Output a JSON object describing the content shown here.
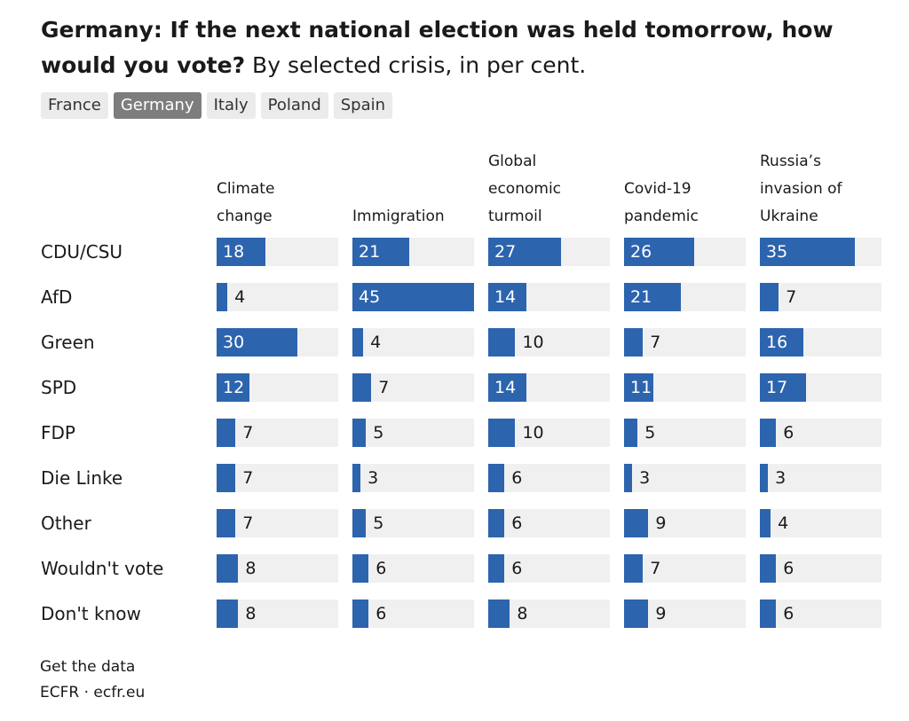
{
  "title": "Germany: If the next national election was held tomorrow, how would you vote?",
  "subtitle": "By selected crisis, in per cent.",
  "tabs": [
    "France",
    "Germany",
    "Italy",
    "Poland",
    "Spain"
  ],
  "active_tab": "Germany",
  "chart_data": {
    "type": "bar",
    "categories": [
      "CDU/CSU",
      "AfD",
      "Green",
      "SPD",
      "FDP",
      "Die Linke",
      "Other",
      "Wouldn't vote",
      "Don't know"
    ],
    "series": [
      {
        "name": "Climate change",
        "color": "#2c64ae",
        "values": [
          18,
          4,
          30,
          12,
          7,
          7,
          7,
          8,
          8
        ]
      },
      {
        "name": "Immigration",
        "color": "#2c64ae",
        "values": [
          21,
          45,
          4,
          7,
          5,
          3,
          5,
          6,
          6
        ]
      },
      {
        "name": "Global economic turmoil",
        "color": "#2c64ae",
        "values": [
          27,
          14,
          10,
          14,
          10,
          6,
          6,
          6,
          8
        ]
      },
      {
        "name": "Covid-19 pandemic",
        "color": "#2c64ae",
        "values": [
          26,
          21,
          7,
          11,
          5,
          3,
          9,
          7,
          9
        ]
      },
      {
        "name": "Russia’s invasion of Ukraine",
        "color": "#2c64ae",
        "values": [
          35,
          7,
          16,
          17,
          6,
          3,
          4,
          6,
          6
        ]
      }
    ],
    "xlim": [
      0,
      45
    ]
  },
  "footer": {
    "link": "Get the data",
    "source": "ECFR · ecfr.eu"
  }
}
